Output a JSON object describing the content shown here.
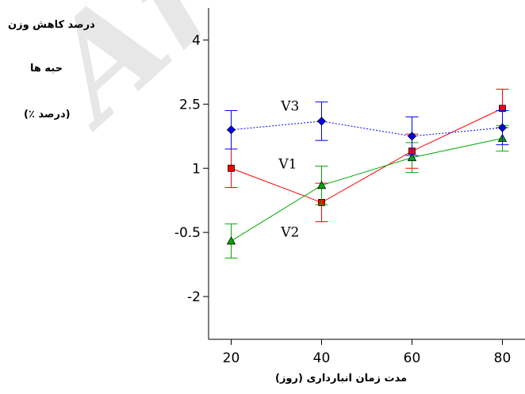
{
  "chart_data": {
    "type": "line",
    "ylabel_lines": [
      "درصد کاهش وزن",
      "حبه ها",
      "(درصد ٪)"
    ],
    "xlabel": "مدت زمان انبارداری (روز)",
    "x": [
      20,
      40,
      60,
      80
    ],
    "xlim": [
      15,
      85
    ],
    "ylim": [
      -3,
      4.75
    ],
    "xticks": [
      "20",
      "40",
      "60",
      "80"
    ],
    "yticks": [
      {
        "v": -2,
        "label": "-2"
      },
      {
        "v": -0.5,
        "label": "-0.5"
      },
      {
        "v": 1,
        "label": "1"
      },
      {
        "v": 2.5,
        "label": "2.5"
      },
      {
        "v": 4,
        "label": "4"
      }
    ],
    "grid": false,
    "series": [
      {
        "name": "V1",
        "color": "#ff0000",
        "marker": "square",
        "values": [
          1.0,
          0.2,
          1.4,
          2.4
        ],
        "errors": [
          0.45,
          0.45,
          0.4,
          0.45
        ]
      },
      {
        "name": "V2",
        "color": "#00aa00",
        "marker": "triangle",
        "values": [
          -0.7,
          0.6,
          1.25,
          1.7
        ],
        "errors": [
          0.4,
          0.45,
          0.35,
          0.3
        ]
      },
      {
        "name": "V3",
        "color": "#0000ff",
        "marker": "diamond",
        "values": [
          1.9,
          2.1,
          1.75,
          1.95
        ],
        "errors": [
          0.45,
          0.45,
          0.45,
          0.4
        ]
      }
    ],
    "annotations": [
      {
        "text": "V3",
        "x": 31,
        "y": 2.35
      },
      {
        "text": "V1",
        "x": 30.5,
        "y": 1.0
      },
      {
        "text": "V2",
        "x": 31,
        "y": -0.6
      }
    ]
  },
  "watermark": "Arch"
}
